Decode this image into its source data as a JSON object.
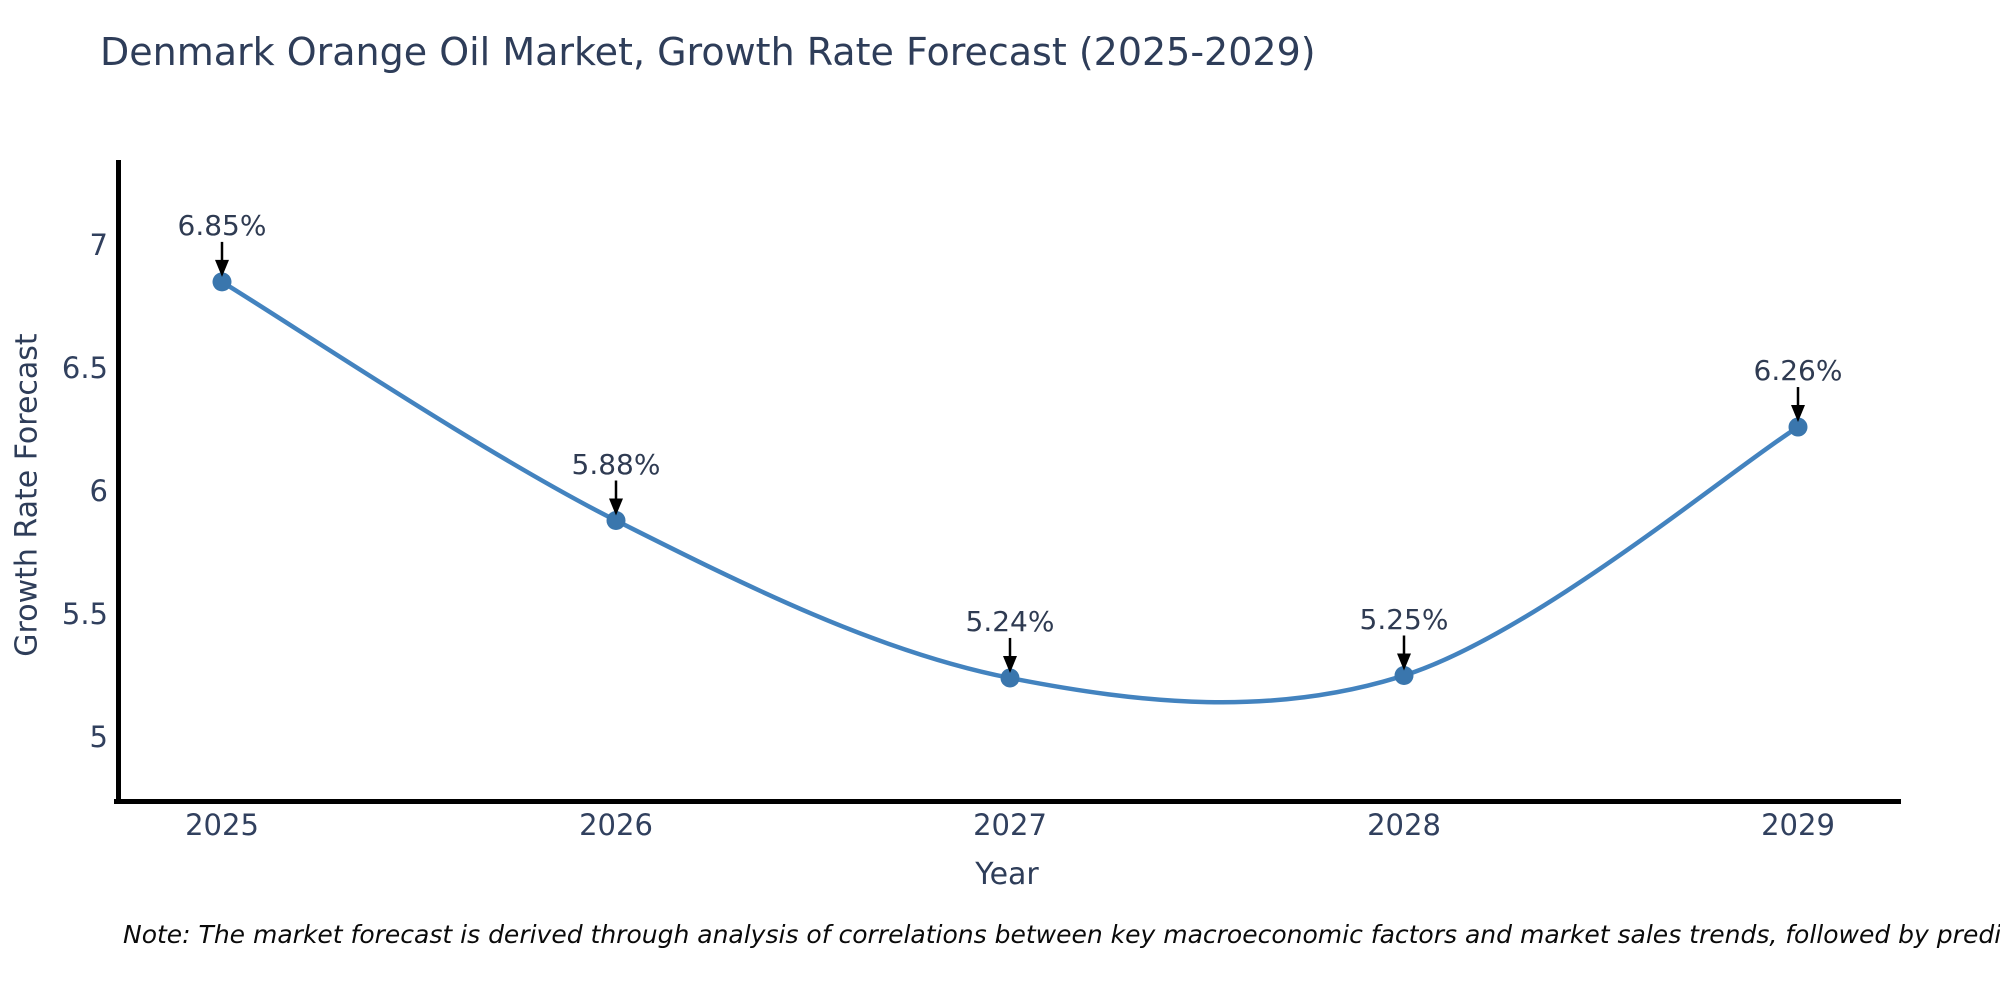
{
  "title": "Denmark Orange Oil Market, Growth Rate Forecast (2025-2029)",
  "note": "Note: The market forecast is derived through analysis of correlations between key macroeconomic factors and market sales trends, followed by predictive modeling to project future sales",
  "chart_data": {
    "type": "line",
    "title": "Denmark Orange Oil Market, Growth Rate Forecast (2025-2029)",
    "x": [
      2025,
      2026,
      2027,
      2028,
      2029
    ],
    "xtick_labels": [
      "2025",
      "2026",
      "2027",
      "2028",
      "2029"
    ],
    "values": [
      6.85,
      5.88,
      5.24,
      5.25,
      6.26
    ],
    "series": [
      {
        "name": "Growth Rate Forecast",
        "values": [
          6.85,
          5.88,
          5.24,
          5.25,
          6.26
        ]
      }
    ],
    "point_labels": [
      "6.85%",
      "5.88%",
      "5.24%",
      "5.25%",
      "6.26%"
    ],
    "xlabel": "Year",
    "ylabel": "Growth Rate Forecast",
    "yticks": [
      7,
      6.5,
      6,
      5.5,
      5
    ],
    "ytick_labels": [
      "7",
      "6.5",
      "6",
      "5.5",
      "5"
    ],
    "ylim": [
      4.74,
      7.35
    ],
    "xlim": [
      2024.73,
      2029.26
    ],
    "grid": false,
    "legend": false,
    "curve": "spline",
    "annotation_style": "down-arrow",
    "colors": {
      "line": "#4383bf",
      "marker": "#3a76ad",
      "arrow": "#000000",
      "title_text": "#2e3d59",
      "tick_text": "#31405e",
      "spine": "#000000",
      "background": "#ffffff"
    }
  }
}
